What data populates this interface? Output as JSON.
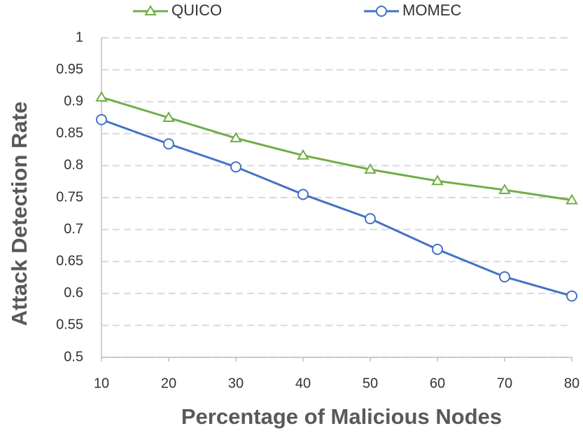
{
  "chart_data": {
    "type": "line",
    "x_label": "Percentage of Malicious Nodes",
    "y_label": "Attack Detection Rate",
    "x": [
      10,
      20,
      30,
      40,
      50,
      60,
      70,
      80
    ],
    "series": [
      {
        "name": "QUICO",
        "color": "#70ad47",
        "marker": "triangle",
        "values": [
          0.907,
          0.875,
          0.843,
          0.816,
          0.794,
          0.776,
          0.762,
          0.746
        ]
      },
      {
        "name": "MOMEC",
        "color": "#4472c4",
        "marker": "circle",
        "values": [
          0.872,
          0.834,
          0.798,
          0.755,
          0.717,
          0.669,
          0.626,
          0.596
        ]
      }
    ],
    "xlim": [
      10,
      80
    ],
    "xticks": [
      10,
      20,
      30,
      40,
      50,
      60,
      70,
      80
    ],
    "ylim": [
      0.5,
      1
    ],
    "yticks": [
      0.5,
      0.55,
      0.6,
      0.65,
      0.7,
      0.75,
      0.8,
      0.85,
      0.9,
      0.95,
      1
    ],
    "grid": true,
    "legend": "top"
  }
}
